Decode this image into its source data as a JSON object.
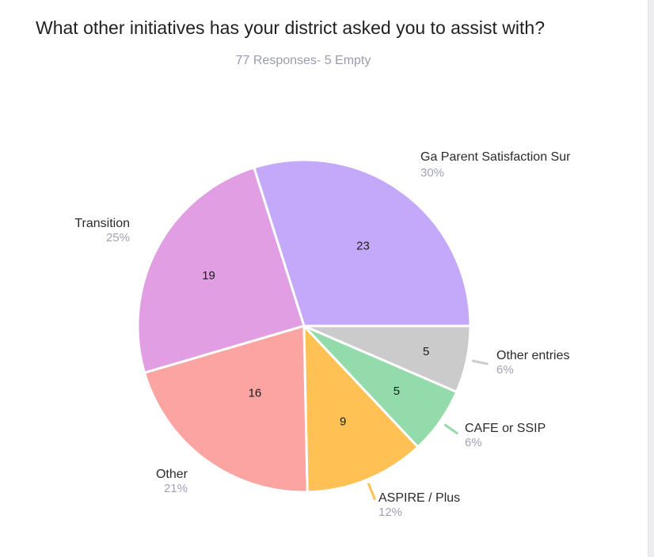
{
  "header": {
    "title": "What other initiatives has your district asked you to assist with?",
    "subtitle": "77 Responses- 5 Empty"
  },
  "chart_data": {
    "type": "pie",
    "start_angle": "3 o'clock, counter-clockwise",
    "slices": [
      {
        "label": "Ga Parent Satisfaction Sur",
        "value": 23,
        "percent": "30%",
        "color": "#c4a9fb",
        "leader_color": "#c4a9fb"
      },
      {
        "label": "Transition",
        "value": 19,
        "percent": "25%",
        "color": "#e29ee3",
        "leader_color": "#e29ee3"
      },
      {
        "label": "Other",
        "value": 16,
        "percent": "21%",
        "color": "#fca4a2",
        "leader_color": "#fca4a2"
      },
      {
        "label": "ASPIRE / Plus",
        "value": 9,
        "percent": "12%",
        "color": "#ffc154",
        "leader_color": "#ffc154"
      },
      {
        "label": "CAFE or SSIP",
        "value": 5,
        "percent": "6%",
        "color": "#93dbaa",
        "leader_color": "#93dbaa"
      },
      {
        "label": "Other entries",
        "value": 5,
        "percent": "6%",
        "color": "#cbcbcb",
        "leader_color": "#cbcbcb"
      }
    ]
  }
}
